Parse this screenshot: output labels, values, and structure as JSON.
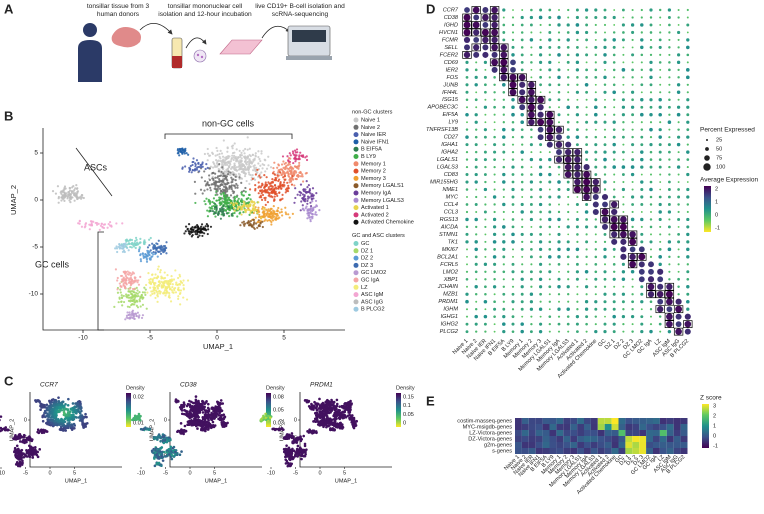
{
  "A": {
    "label": "A",
    "steps": [
      [
        "tonsillar tissue from 3",
        "human donors"
      ],
      [
        "tonsillar mononuclear cell",
        "isolation and 12-hour incubation"
      ],
      [
        "live CD19+ B-cell isolation and",
        "scRNA-sequencing"
      ]
    ]
  },
  "B": {
    "label": "B",
    "x_label": "UMAP_1",
    "y_label": "UMAP_2",
    "xticks": [
      -10,
      -5,
      0,
      5
    ],
    "yticks": [
      5,
      0,
      -5,
      -10
    ],
    "annotations": [
      "non-GC cells",
      "ASCs",
      "GC cells"
    ],
    "legend": [
      {
        "title": "non-GC clusters",
        "clusters": [
          {
            "name": "Naive 1",
            "color": "#c9c9c9"
          },
          {
            "name": "Naive 2",
            "color": "#707070"
          },
          {
            "name": "Naive IER",
            "color": "#4a5fae"
          },
          {
            "name": "Naive IFN1",
            "color": "#1f5fa8"
          },
          {
            "name": "B EIF5A",
            "color": "#2e7d4f"
          },
          {
            "name": "B LY9",
            "color": "#3fae49"
          },
          {
            "name": "Memory 1",
            "color": "#f08a6c"
          },
          {
            "name": "Memory 2",
            "color": "#e0502a"
          },
          {
            "name": "Memory 3",
            "color": "#f0a030"
          },
          {
            "name": "Memory LGALS1",
            "color": "#8a5a2a"
          },
          {
            "name": "Memory IgA",
            "color": "#6a3d9a"
          },
          {
            "name": "Memory LGALS3",
            "color": "#a98bd0"
          },
          {
            "name": "Activated 1",
            "color": "#e8d44d"
          },
          {
            "name": "Activated 2",
            "color": "#d63a7a"
          },
          {
            "name": "Activated Chemokine",
            "color": "#111111"
          }
        ]
      },
      {
        "title": "GC and ASC clusters",
        "clusters": [
          {
            "name": "GC",
            "color": "#7fd3c8"
          },
          {
            "name": "DZ 1",
            "color": "#a6d96a"
          },
          {
            "name": "DZ 2",
            "color": "#5b9bd5"
          },
          {
            "name": "DZ 3",
            "color": "#3d6bb0"
          },
          {
            "name": "GC LMO2",
            "color": "#b99ad1"
          },
          {
            "name": "GC IgA",
            "color": "#f4a6a6"
          },
          {
            "name": "LZ",
            "color": "#f3ec7a"
          },
          {
            "name": "ASC IgM",
            "color": "#f3a6d2"
          },
          {
            "name": "ASC IgG",
            "color": "#bdbdbd"
          },
          {
            "name": "B PLCG2",
            "color": "#9ecae1"
          }
        ]
      }
    ]
  },
  "C": {
    "label": "C",
    "x_label": "UMAP_1",
    "y_label": "UMAP_2",
    "xticks": [
      -10,
      -5,
      0,
      5
    ],
    "yticks": [
      0,
      -5,
      -10
    ],
    "plots": [
      {
        "gene": "CCR7",
        "legend_title": "Density",
        "legend_ticks": [
          "0.02",
          "0.01"
        ]
      },
      {
        "gene": "CD38",
        "legend_title": "Density",
        "legend_ticks": [
          "0.08",
          "0.05",
          "0.03"
        ]
      },
      {
        "gene": "PRDM1",
        "legend_title": "Density",
        "legend_ticks": [
          "0.15",
          "0.1",
          "0.05",
          "0"
        ]
      }
    ]
  },
  "D": {
    "label": "D",
    "genes": [
      "CCR7",
      "CD38",
      "IGHD",
      "HVCN1",
      "FCMR",
      "SELL",
      "FCER2",
      "CD69",
      "IER2",
      "FOS",
      "JUNB",
      "IFI44L",
      "ISG15",
      "APOBEC3C",
      "EIF5A",
      "LY9",
      "TNFRSF13B",
      "CD27",
      "IGHA1",
      "IGHA2",
      "LGALS1",
      "LGALS3",
      "CD83",
      "MIR155HG",
      "NME1",
      "MYC",
      "CCL4",
      "CCL3",
      "RGS13",
      "AICDA",
      "STMN1",
      "TK1",
      "MKI67",
      "BCL2A1",
      "FCRL5",
      "LMO2",
      "XBP1",
      "JCHAIN",
      "MZB1",
      "PRDM1",
      "IGHM",
      "IGHG1",
      "IGHG2",
      "PLCG2"
    ],
    "clusters": [
      "Naive 1",
      "Naive 2",
      "Naive IER",
      "Naive IFN1",
      "B EIF5A",
      "B LY9",
      "Memory 1",
      "Memory 2",
      "Memory 3",
      "Memory LGALS1",
      "Memory IgA",
      "Memory LGALS3",
      "Activated 1",
      "Activated 2",
      "Activated Chemokine",
      "GC",
      "DZ 1",
      "DZ 2",
      "DZ 3",
      "GC LMO2",
      "GC IgA",
      "LZ",
      "ASC IgM",
      "ASC IgG",
      "B PLCG2"
    ],
    "size_legend": {
      "title": "Percent Expressed",
      "ticks": [
        25,
        50,
        75,
        100
      ]
    },
    "color_legend": {
      "title": "Average Expression",
      "ticks": [
        2,
        1,
        0,
        -1
      ]
    }
  },
  "E": {
    "label": "E",
    "gene_sets": [
      "costim-masseq-genes",
      "MYC-msigdb-genes",
      "LZ-Victora-genes",
      "DZ-Victora-genes",
      "g2m-genes",
      "s-genes"
    ],
    "clusters": [
      "Naive 1",
      "Naive 2",
      "Naive IER",
      "Naive IFN1",
      "B EIF5A",
      "B LY9",
      "Memory 1",
      "Memory 2",
      "Memory 3",
      "Memory LGALS1",
      "Memory IgA",
      "Memory LGALS3",
      "Activated 1",
      "Activated 2",
      "Activated Chemokine",
      "GC",
      "DZ 1",
      "DZ 2",
      "DZ 3",
      "GC LMO2",
      "GC IgA",
      "LZ",
      "ASC IgM",
      "ASC IgG",
      "B PLCG2"
    ],
    "color_legend": {
      "title": "Z score",
      "ticks": [
        3,
        2,
        1,
        0,
        -1
      ]
    }
  }
}
